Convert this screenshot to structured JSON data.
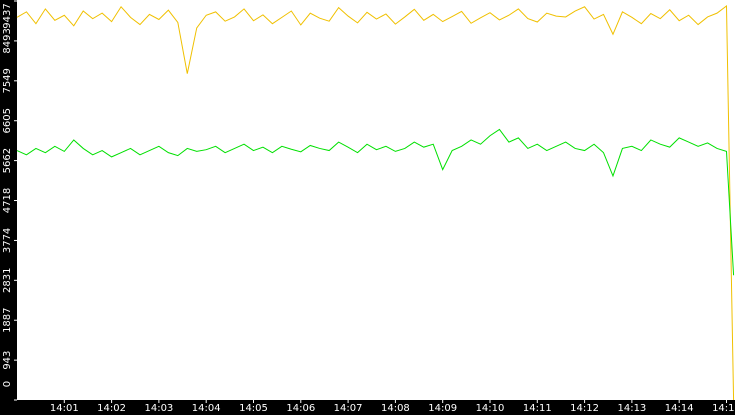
{
  "chart_data": {
    "type": "line",
    "x": [
      0,
      0.2,
      0.4,
      0.6,
      0.8,
      1,
      1.2,
      1.4,
      1.6,
      1.8,
      2,
      2.2,
      2.4,
      2.6,
      2.8,
      3,
      3.2,
      3.4,
      3.6,
      3.8,
      4,
      4.2,
      4.4,
      4.6,
      4.8,
      5,
      5.2,
      5.4,
      5.6,
      5.8,
      6,
      6.2,
      6.4,
      6.6,
      6.8,
      7,
      7.2,
      7.4,
      7.6,
      7.8,
      8,
      8.2,
      8.4,
      8.6,
      8.8,
      9,
      9.2,
      9.4,
      9.6,
      9.8,
      10,
      10.2,
      10.4,
      10.6,
      10.8,
      11,
      11.2,
      11.4,
      11.6,
      11.8,
      12,
      12.2,
      12.4,
      12.6,
      12.8,
      13,
      13.2,
      13.4,
      13.6,
      13.8,
      14,
      14.2,
      14.4,
      14.6,
      14.8,
      15,
      15.15
    ],
    "series": [
      {
        "color": "#f0c000",
        "values": [
          9050,
          9180,
          8900,
          9250,
          8980,
          9100,
          8850,
          9200,
          9020,
          9150,
          8950,
          9300,
          9050,
          8880,
          9120,
          9000,
          9220,
          8930,
          7720,
          8800,
          9100,
          9180,
          8960,
          9060,
          9250,
          8970,
          9110,
          8900,
          9050,
          9200,
          8870,
          9150,
          9030,
          8960,
          9280,
          9080,
          8920,
          9170,
          9010,
          9130,
          8890,
          9060,
          9240,
          8980,
          9120,
          8950,
          9070,
          9190,
          8910,
          9040,
          9160,
          8990,
          9100,
          9250,
          9020,
          8940,
          9150,
          9080,
          9060,
          9200,
          9300,
          9010,
          9120,
          8650,
          9180,
          9050,
          8900,
          9140,
          9020,
          9230,
          8970,
          9100,
          8880,
          9060,
          9150,
          9320,
          0
        ]
      },
      {
        "color": "#00e000",
        "values": [
          5900,
          5800,
          5950,
          5850,
          6000,
          5880,
          6150,
          5950,
          5800,
          5900,
          5750,
          5850,
          5950,
          5800,
          5900,
          6000,
          5850,
          5780,
          5950,
          5880,
          5920,
          6000,
          5850,
          5950,
          6050,
          5900,
          5980,
          5850,
          6000,
          5930,
          5870,
          6020,
          5950,
          5900,
          6100,
          5980,
          5850,
          6050,
          5920,
          6000,
          5880,
          5950,
          6100,
          5980,
          6050,
          5450,
          5900,
          6000,
          6150,
          6050,
          6250,
          6400,
          6100,
          6200,
          5950,
          6050,
          5900,
          6000,
          6100,
          5950,
          5900,
          6050,
          5850,
          5300,
          5950,
          6000,
          5900,
          6150,
          6050,
          5980,
          6200,
          6100,
          6000,
          6080,
          5950,
          5880,
          2950
        ]
      }
    ],
    "xlim": [
      0,
      15.18
    ],
    "xticks": [
      {
        "value": 1,
        "label": "14:01"
      },
      {
        "value": 2,
        "label": "14:02"
      },
      {
        "value": 3,
        "label": "14:03"
      },
      {
        "value": 4,
        "label": "14:04"
      },
      {
        "value": 5,
        "label": "14:05"
      },
      {
        "value": 6,
        "label": "14:06"
      },
      {
        "value": 7,
        "label": "14:07"
      },
      {
        "value": 8,
        "label": "14:08"
      },
      {
        "value": 9,
        "label": "14:09"
      },
      {
        "value": 10,
        "label": "14:10"
      },
      {
        "value": 11,
        "label": "14:11"
      },
      {
        "value": 12,
        "label": "14:12"
      },
      {
        "value": 13,
        "label": "14:13"
      },
      {
        "value": 14,
        "label": "14:14"
      },
      {
        "value": 15,
        "label": "14:15"
      }
    ],
    "ylim": [
      0,
      9437
    ],
    "yticks": [
      0,
      943,
      1887,
      2831,
      3774,
      4718,
      5662,
      6605,
      7549,
      8493,
      9437
    ]
  }
}
